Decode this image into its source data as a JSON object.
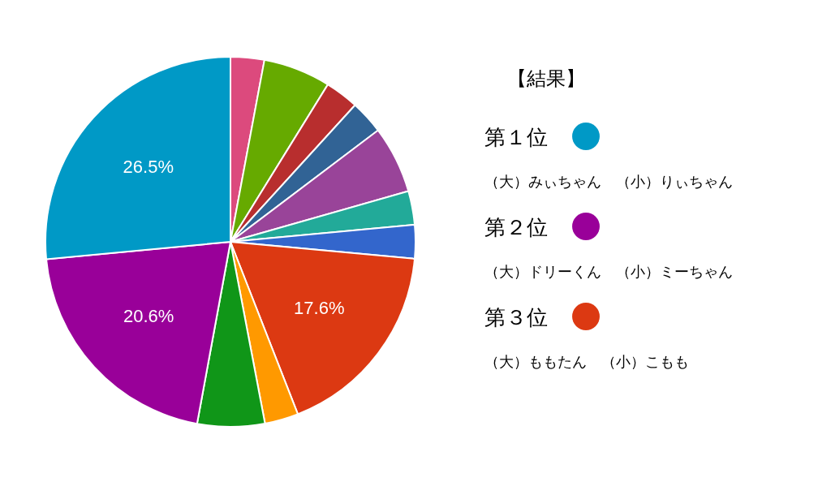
{
  "chart_data": {
    "type": "pie",
    "title": "【結果】",
    "categories": [
      null,
      null,
      null,
      null,
      null,
      null,
      null,
      null,
      null,
      null,
      null,
      null
    ],
    "values": [
      2.94,
      5.88,
      2.94,
      2.94,
      5.88,
      2.94,
      2.94,
      17.6,
      2.94,
      5.88,
      20.6,
      26.5
    ],
    "value_labels": [
      null,
      null,
      null,
      null,
      null,
      null,
      null,
      "17.6%",
      null,
      null,
      "20.6%",
      "26.5%"
    ],
    "colors": [
      "#dc4a7d",
      "#66aa00",
      "#b82e2e",
      "#316395",
      "#994499",
      "#22aa99",
      "#3366cc",
      "#dc3912",
      "#ff9900",
      "#109618",
      "#990099",
      "#0099c6"
    ],
    "annotations": [
      "第１位",
      "（大）みぃちゃん　（小）りぃちゃん",
      "第２位",
      "（大）ドリーくん　（小）ミーちゃん",
      "第３位",
      "（大）ももたん　（小）こもも"
    ],
    "data_labels": false
  }
}
